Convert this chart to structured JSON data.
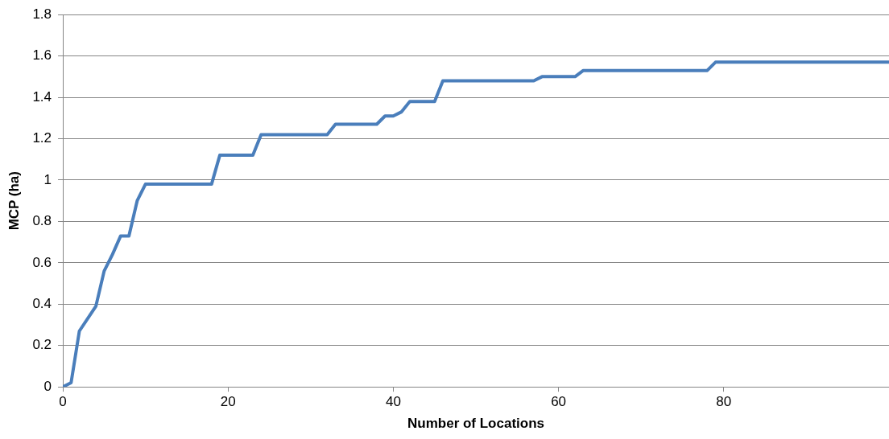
{
  "chart_data": {
    "type": "line",
    "xlabel": "Number of Locations",
    "ylabel": "MCP (ha)",
    "xlim": [
      0,
      100
    ],
    "xticks": [
      0,
      20,
      40,
      60,
      80
    ],
    "ylim": [
      0,
      1.8
    ],
    "yticks": [
      0,
      0.2,
      0.4,
      0.6,
      0.8,
      1,
      1.2,
      1.4,
      1.6,
      1.8
    ],
    "grid": "y",
    "legend": false,
    "marker": "none",
    "line_style": "solid",
    "series": [
      {
        "color": "#4a7ebb",
        "x": [
          0,
          1,
          2,
          4,
          5,
          6,
          7,
          8,
          9,
          10,
          18,
          19,
          23,
          24,
          32,
          33,
          38,
          39,
          40,
          41,
          42,
          45,
          46,
          57,
          58,
          62,
          63,
          78,
          79,
          100
        ],
        "values": [
          0,
          0.02,
          0.27,
          0.39,
          0.56,
          0.64,
          0.73,
          0.73,
          0.9,
          0.98,
          0.98,
          1.12,
          1.12,
          1.22,
          1.22,
          1.27,
          1.27,
          1.31,
          1.31,
          1.33,
          1.38,
          1.38,
          1.48,
          1.48,
          1.5,
          1.5,
          1.53,
          1.53,
          1.57,
          1.57
        ]
      }
    ]
  }
}
